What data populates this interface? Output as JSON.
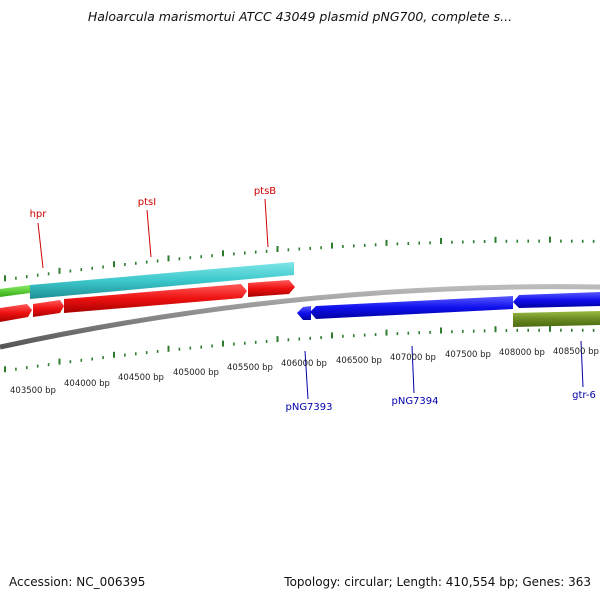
{
  "title": "Haloarcula marismortui ATCC 43049 plasmid pNG700, complete s...",
  "accession": "Accession: NC_006395",
  "summary": "Topology: circular; Length: 410,554 bp; Genes: 363",
  "colors": {
    "tick": "#2e7d2e",
    "backbone": "#8a8a8a",
    "cyan_feature": "#3cc8cc",
    "red_feature": "#ee1111",
    "green_feature": "#44cc22",
    "blue_feature": "#1010ee",
    "olive_feature": "#6b8a22",
    "forward_label": "#cc0000",
    "reverse_label": "#0000aa"
  },
  "gene_labels_forward": [
    "hpr",
    "ptsI",
    "ptsB"
  ],
  "gene_labels_reverse": [
    "pNG7393",
    "pNG7394",
    "gtr-6"
  ],
  "scale_labels": [
    "403500 bp",
    "404000 bp",
    "404500 bp",
    "405000 bp",
    "405500 bp",
    "406000 bp",
    "406500 bp",
    "407000 bp",
    "407500 bp",
    "408000 bp",
    "408500 bp"
  ]
}
